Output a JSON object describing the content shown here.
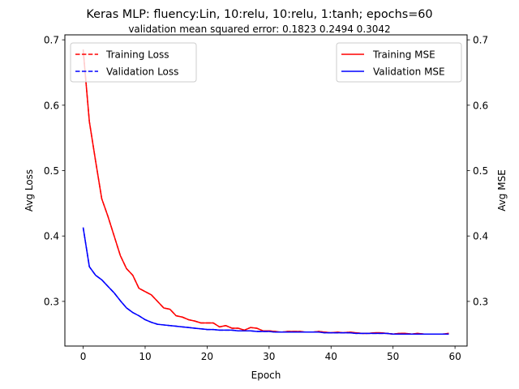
{
  "chart_data": {
    "type": "line",
    "title": "Keras MLP: fluency:Lin, 10:relu, 10:relu, 1:tanh; epochs=60",
    "subtitle": "validation mean squared error:  0.1823  0.2494  0.3042",
    "xlabel": "Epoch",
    "ylabel_left": "Avg Loss",
    "ylabel_right": "Avg MSE",
    "xlim": [
      -2.95,
      61.95
    ],
    "ylim": [
      0.2317,
      0.7076
    ],
    "x_ticks": [
      0,
      10,
      20,
      30,
      40,
      50,
      60
    ],
    "y_ticks": [
      0.3,
      0.4,
      0.5,
      0.6,
      0.7
    ],
    "y_tick_labels": [
      "0.3",
      "0.4",
      "0.5",
      "0.6",
      "0.7"
    ],
    "grid": false,
    "legends": [
      {
        "placement": "upper left",
        "entries": [
          {
            "label": "Training Loss",
            "color": "#ff0000",
            "style": "dashed"
          },
          {
            "label": "Validation Loss",
            "color": "#0000ff",
            "style": "dashed"
          }
        ]
      },
      {
        "placement": "upper right",
        "entries": [
          {
            "label": "Training MSE",
            "color": "#ff0000",
            "style": "solid"
          },
          {
            "label": "Validation MSE",
            "color": "#0000ff",
            "style": "solid"
          }
        ]
      }
    ],
    "series": [
      {
        "name": "Training Loss",
        "color": "#ff0000",
        "style": "dashed",
        "axis": "left",
        "values": [
          0.685,
          0.575,
          0.515,
          0.457,
          0.43,
          0.4,
          0.37,
          0.35,
          0.34,
          0.32,
          0.315,
          0.31,
          0.3,
          0.29,
          0.288,
          0.278,
          0.276,
          0.272,
          0.27,
          0.267,
          0.267,
          0.267,
          0.261,
          0.263,
          0.259,
          0.259,
          0.256,
          0.26,
          0.259,
          0.255,
          0.255,
          0.254,
          0.253,
          0.254,
          0.254,
          0.254,
          0.253,
          0.253,
          0.254,
          0.253,
          0.252,
          0.253,
          0.252,
          0.253,
          0.252,
          0.251,
          0.251,
          0.252,
          0.252,
          0.251,
          0.25,
          0.251,
          0.251,
          0.25,
          0.251,
          0.25,
          0.25,
          0.25,
          0.25,
          0.251
        ]
      },
      {
        "name": "Validation Loss",
        "color": "#0000ff",
        "style": "dashed",
        "axis": "left",
        "values": [
          0.413,
          0.353,
          0.34,
          0.333,
          0.323,
          0.313,
          0.301,
          0.29,
          0.283,
          0.278,
          0.272,
          0.268,
          0.265,
          0.264,
          0.263,
          0.262,
          0.261,
          0.26,
          0.259,
          0.258,
          0.257,
          0.257,
          0.256,
          0.256,
          0.256,
          0.255,
          0.255,
          0.255,
          0.254,
          0.254,
          0.254,
          0.253,
          0.253,
          0.253,
          0.253,
          0.253,
          0.253,
          0.253,
          0.253,
          0.252,
          0.252,
          0.252,
          0.252,
          0.252,
          0.251,
          0.251,
          0.251,
          0.251,
          0.251,
          0.251,
          0.25,
          0.25,
          0.25,
          0.25,
          0.25,
          0.25,
          0.25,
          0.25,
          0.25,
          0.25
        ]
      },
      {
        "name": "Training MSE",
        "color": "#ff0000",
        "style": "solid",
        "axis": "right",
        "values": [
          0.685,
          0.575,
          0.515,
          0.457,
          0.43,
          0.4,
          0.37,
          0.35,
          0.34,
          0.32,
          0.315,
          0.31,
          0.3,
          0.29,
          0.288,
          0.278,
          0.276,
          0.272,
          0.27,
          0.267,
          0.267,
          0.267,
          0.261,
          0.263,
          0.259,
          0.259,
          0.256,
          0.26,
          0.259,
          0.255,
          0.255,
          0.254,
          0.253,
          0.254,
          0.254,
          0.254,
          0.253,
          0.253,
          0.254,
          0.253,
          0.252,
          0.253,
          0.252,
          0.253,
          0.252,
          0.251,
          0.251,
          0.252,
          0.252,
          0.251,
          0.25,
          0.251,
          0.251,
          0.25,
          0.251,
          0.25,
          0.25,
          0.25,
          0.25,
          0.251
        ]
      },
      {
        "name": "Validation MSE",
        "color": "#0000ff",
        "style": "solid",
        "axis": "right",
        "values": [
          0.413,
          0.353,
          0.34,
          0.333,
          0.323,
          0.313,
          0.301,
          0.29,
          0.283,
          0.278,
          0.272,
          0.268,
          0.265,
          0.264,
          0.263,
          0.262,
          0.261,
          0.26,
          0.259,
          0.258,
          0.257,
          0.257,
          0.256,
          0.256,
          0.256,
          0.255,
          0.255,
          0.255,
          0.254,
          0.254,
          0.254,
          0.253,
          0.253,
          0.253,
          0.253,
          0.253,
          0.253,
          0.253,
          0.253,
          0.252,
          0.252,
          0.252,
          0.252,
          0.252,
          0.251,
          0.251,
          0.251,
          0.251,
          0.251,
          0.251,
          0.25,
          0.25,
          0.25,
          0.25,
          0.25,
          0.25,
          0.25,
          0.25,
          0.25,
          0.25
        ]
      }
    ]
  }
}
